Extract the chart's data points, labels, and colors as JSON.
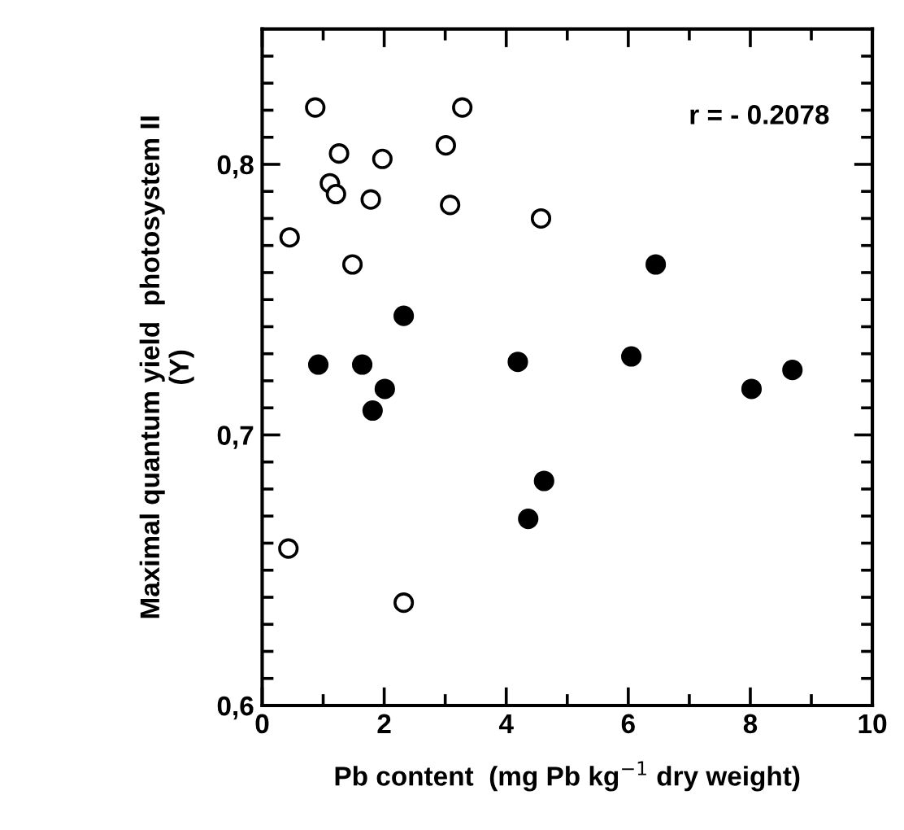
{
  "chart_data": {
    "type": "scatter",
    "xlabel": "Pb content  (mg Pb kg$^{−1}$ dry weight)",
    "ylabel": "Maximal quantum yield  photosystem II\n(Y)",
    "annotations": [
      "r = - 0.2078"
    ],
    "xlim": [
      0,
      10
    ],
    "ylim": [
      0.6,
      0.85
    ],
    "xticks": [
      0,
      {
        "value": 1,
        "label": null
      },
      2,
      {
        "value": 3,
        "label": null
      },
      4,
      {
        "value": 5,
        "label": null
      },
      6,
      {
        "value": 7,
        "label": null
      },
      8,
      {
        "value": 9,
        "label": null
      },
      10
    ],
    "yticks": [
      {
        "value": 0.6,
        "label": "0,6"
      },
      {
        "value": 0.61,
        "label": null
      },
      {
        "value": 0.62,
        "label": null
      },
      {
        "value": 0.63,
        "label": null
      },
      {
        "value": 0.64,
        "label": null
      },
      {
        "value": 0.65,
        "label": null
      },
      {
        "value": 0.66,
        "label": null
      },
      {
        "value": 0.67,
        "label": null
      },
      {
        "value": 0.68,
        "label": null
      },
      {
        "value": 0.69,
        "label": null
      },
      {
        "value": 0.7,
        "label": "0,7"
      },
      {
        "value": 0.71,
        "label": null
      },
      {
        "value": 0.72,
        "label": null
      },
      {
        "value": 0.73,
        "label": null
      },
      {
        "value": 0.74,
        "label": null
      },
      {
        "value": 0.75,
        "label": null
      },
      {
        "value": 0.76,
        "label": null
      },
      {
        "value": 0.77,
        "label": null
      },
      {
        "value": 0.78,
        "label": null
      },
      {
        "value": 0.79,
        "label": null
      },
      {
        "value": 0.8,
        "label": "0,8"
      },
      {
        "value": 0.81,
        "label": null
      },
      {
        "value": 0.82,
        "label": null
      },
      {
        "value": 0.83,
        "label": null
      },
      {
        "value": 0.84,
        "label": null
      }
    ],
    "marker": "circle",
    "grid": false,
    "legend": false,
    "series": [
      {
        "color": "#ffffff",
        "x": [
          0.87,
          3.28,
          1.26,
          1.97,
          3.01,
          1.11,
          1.21,
          1.78,
          3.08,
          4.57,
          0.45,
          1.48,
          0.43,
          2.32
        ],
        "values": [
          0.821,
          0.821,
          0.804,
          0.802,
          0.807,
          0.793,
          0.789,
          0.787,
          0.785,
          0.78,
          0.773,
          0.763,
          0.658,
          0.638
        ]
      },
      {
        "color": "#000000",
        "x": [
          0.92,
          1.64,
          2.32,
          2.01,
          1.81,
          4.19,
          4.62,
          4.36,
          6.05,
          6.45,
          8.02,
          8.69
        ],
        "values": [
          0.726,
          0.726,
          0.744,
          0.717,
          0.709,
          0.727,
          0.683,
          0.669,
          0.729,
          0.763,
          0.717,
          0.724
        ]
      }
    ]
  }
}
